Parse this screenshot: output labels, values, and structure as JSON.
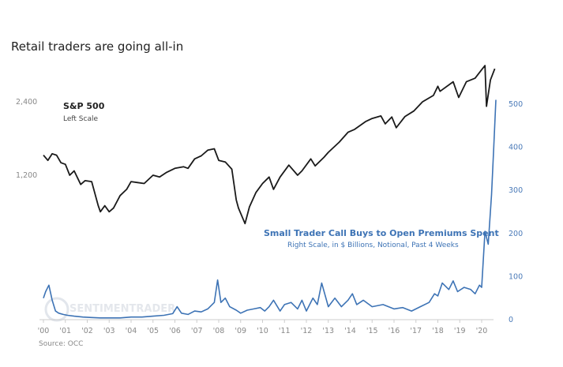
{
  "title": "Retail traders are going all-in",
  "source": "Source: OCC",
  "watermark": "SENTIMENTRADER",
  "chart_data": {
    "type": "line",
    "title": "Retail traders are going all-in",
    "xlabel": "",
    "x_ticks": [
      "'00",
      "'01",
      "'02",
      "'03",
      "'04",
      "'05",
      "'06",
      "'07",
      "'08",
      "'09",
      "'10",
      "'11",
      "'12",
      "'13",
      "'14",
      "'15",
      "'16",
      "'17",
      "'18",
      "'19",
      "'20"
    ],
    "left_axis": {
      "ticks": [
        "1,200",
        "2,400"
      ],
      "tick_values": [
        1200,
        2400
      ],
      "scale": "log"
    },
    "right_axis": {
      "ticks": [
        "0",
        "100",
        "200",
        "300",
        "400",
        "500"
      ],
      "tick_values": [
        0,
        100,
        200,
        300,
        400,
        500
      ],
      "ylim": [
        0,
        500
      ]
    },
    "series": [
      {
        "name": "S&P 500",
        "label": "S&P 500",
        "sublabel": "Left Scale",
        "axis": "left",
        "color": "#1a1a1a",
        "x": [
          2000.0,
          2000.2,
          2000.4,
          2000.6,
          2000.8,
          2001.0,
          2001.2,
          2001.4,
          2001.7,
          2001.9,
          2002.2,
          2002.5,
          2002.6,
          2002.8,
          2003.0,
          2003.2,
          2003.5,
          2003.8,
          2004.0,
          2004.3,
          2004.6,
          2005.0,
          2005.3,
          2005.6,
          2006.0,
          2006.4,
          2006.6,
          2006.9,
          2007.2,
          2007.5,
          2007.8,
          2008.0,
          2008.3,
          2008.6,
          2008.8,
          2008.9,
          2009.2,
          2009.4,
          2009.7,
          2010.0,
          2010.3,
          2010.5,
          2010.8,
          2011.2,
          2011.6,
          2011.8,
          2012.2,
          2012.4,
          2012.8,
          2013.0,
          2013.5,
          2013.9,
          2014.2,
          2014.7,
          2015.0,
          2015.4,
          2015.6,
          2015.9,
          2016.1,
          2016.5,
          2016.9,
          2017.3,
          2017.8,
          2018.0,
          2018.1,
          2018.7,
          2018.95,
          2019.3,
          2019.7,
          2020.0,
          2020.15,
          2020.22,
          2020.4,
          2020.6
        ],
        "values": [
          1450,
          1380,
          1470,
          1450,
          1350,
          1330,
          1200,
          1250,
          1100,
          1140,
          1130,
          900,
          850,
          900,
          850,
          880,
          990,
          1050,
          1130,
          1120,
          1110,
          1200,
          1180,
          1230,
          1280,
          1300,
          1280,
          1400,
          1440,
          1520,
          1540,
          1380,
          1360,
          1270,
          950,
          880,
          760,
          890,
          1020,
          1110,
          1180,
          1050,
          1180,
          1320,
          1200,
          1250,
          1400,
          1310,
          1420,
          1490,
          1640,
          1800,
          1850,
          1990,
          2050,
          2100,
          1950,
          2080,
          1880,
          2090,
          2200,
          2400,
          2550,
          2780,
          2650,
          2900,
          2500,
          2900,
          3000,
          3250,
          3380,
          2300,
          2950,
          3280
        ]
      },
      {
        "name": "Small Trader Call Buys to Open Premiums Spent",
        "label": "Small Trader Call Buys to Open Premiums Spent",
        "sublabel": "Right Scale, in $ Billions, Notional, Past 4 Weeks",
        "axis": "right",
        "color": "#3d73b5",
        "x": [
          2000.0,
          2000.1,
          2000.25,
          2000.4,
          2000.55,
          2000.7,
          2000.9,
          2001.1,
          2001.4,
          2001.8,
          2002.2,
          2002.6,
          2003.0,
          2003.5,
          2004.0,
          2004.5,
          2005.0,
          2005.5,
          2005.9,
          2006.1,
          2006.3,
          2006.6,
          2006.9,
          2007.2,
          2007.5,
          2007.8,
          2007.95,
          2008.1,
          2008.3,
          2008.5,
          2008.8,
          2009.0,
          2009.3,
          2009.6,
          2009.9,
          2010.1,
          2010.3,
          2010.5,
          2010.8,
          2011.0,
          2011.3,
          2011.6,
          2011.8,
          2012.0,
          2012.3,
          2012.5,
          2012.7,
          2013.0,
          2013.3,
          2013.6,
          2013.9,
          2014.1,
          2014.3,
          2014.6,
          2015.0,
          2015.5,
          2016.0,
          2016.4,
          2016.8,
          2017.2,
          2017.6,
          2017.85,
          2018.0,
          2018.2,
          2018.5,
          2018.7,
          2018.9,
          2019.2,
          2019.5,
          2019.7,
          2019.9,
          2020.0,
          2020.15,
          2020.3,
          2020.45,
          2020.55,
          2020.65
        ],
        "values": [
          50,
          65,
          80,
          45,
          20,
          15,
          12,
          10,
          8,
          6,
          5,
          4,
          4,
          4,
          6,
          6,
          8,
          10,
          14,
          30,
          15,
          12,
          20,
          18,
          25,
          40,
          92,
          40,
          50,
          30,
          22,
          15,
          22,
          25,
          28,
          20,
          30,
          45,
          20,
          35,
          40,
          25,
          45,
          20,
          50,
          35,
          85,
          30,
          50,
          30,
          45,
          60,
          35,
          45,
          30,
          35,
          25,
          28,
          20,
          30,
          40,
          60,
          55,
          85,
          70,
          90,
          65,
          75,
          70,
          60,
          80,
          75,
          205,
          175,
          290,
          400,
          510
        ]
      }
    ],
    "legend": "inline labels",
    "grid": false
  }
}
